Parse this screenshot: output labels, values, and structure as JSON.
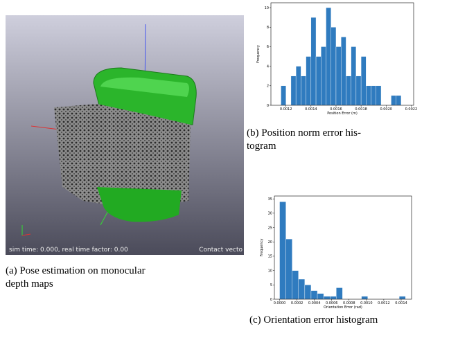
{
  "panels": {
    "a": {
      "caption": [
        "(a) Pose estimation on monocular",
        "depth maps"
      ],
      "status_left": "sim time: 0.000, real time factor: 0.00",
      "status_right": "Contact vecto"
    },
    "b": {
      "caption": [
        "(b) Position norm error his-",
        "togram"
      ]
    },
    "c": {
      "caption": [
        "(c) Orientation error histogram"
      ]
    }
  },
  "chart_data": [
    {
      "type": "histogram",
      "x_label": "Position Error (m)",
      "y_label": "Frequency",
      "color": "#2f7bbf",
      "bins": [
        0.00116,
        0.0012,
        0.00124,
        0.00128,
        0.00132,
        0.00136,
        0.0014,
        0.00144,
        0.00148,
        0.00152,
        0.00156,
        0.0016,
        0.00164,
        0.00168,
        0.00172,
        0.00176,
        0.0018,
        0.00184,
        0.00188,
        0.00192,
        0.00196,
        0.002,
        0.00204,
        0.00208,
        0.00212
      ],
      "values": [
        2,
        0,
        3,
        4,
        3,
        5,
        9,
        5,
        6,
        10,
        8,
        6,
        7,
        3,
        6,
        3,
        5,
        2,
        2,
        2,
        0,
        0,
        1,
        1
      ],
      "xlim": [
        0.00108,
        0.00222
      ],
      "xticks": [
        0.0012,
        0.0014,
        0.0016,
        0.0018,
        {
          "value": 0.002,
          "label": "0.0020"
        },
        0.0022
      ],
      "ylim": [
        0,
        10.5
      ],
      "yticks": [
        0,
        2,
        4,
        6,
        8,
        10
      ]
    },
    {
      "type": "histogram",
      "x_label": "Orientation Error (rad)",
      "y_label": "Frequency",
      "color": "#2f7bbf",
      "bins": [
        0,
        7.25e-05,
        0.000145,
        0.0002175,
        0.00029,
        0.0003625,
        0.000435,
        0.0005075,
        0.00058,
        0.0006525,
        0.000725,
        0.0007975,
        0.00087,
        0.0009425,
        0.001015,
        0.0010875,
        0.00116,
        0.0012325,
        0.001305,
        0.0013775,
        0.00145
      ],
      "values": [
        34,
        21,
        10,
        7,
        5,
        3,
        2,
        1,
        1,
        4,
        0,
        0,
        0,
        1,
        0,
        0,
        0,
        0,
        0,
        1
      ],
      "xlim": [
        -6e-05,
        0.00152
      ],
      "xticks": [
        {
          "value": 0,
          "label": "0.0000"
        },
        0.0002,
        0.0004,
        0.0006,
        0.0008,
        {
          "value": 0.001,
          "label": "0.0010"
        },
        0.0012,
        0.0014
      ],
      "ylim": [
        0,
        36
      ],
      "yticks": [
        0,
        5,
        10,
        15,
        20,
        25,
        30,
        35
      ]
    }
  ]
}
